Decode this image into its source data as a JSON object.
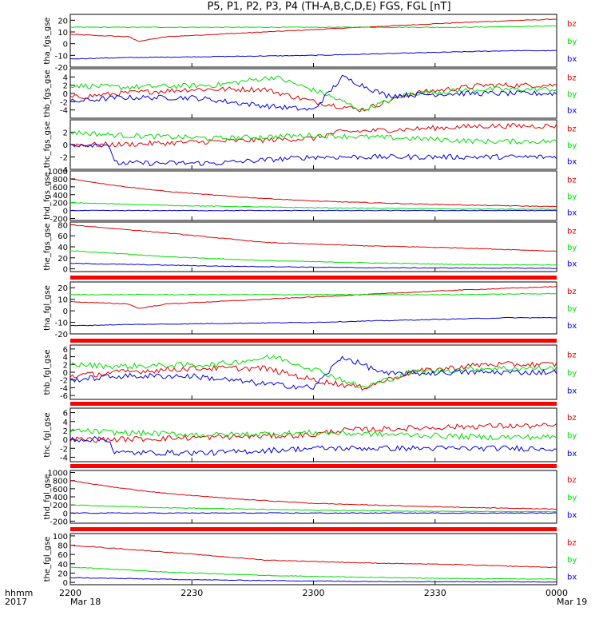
{
  "title": "P5, P1, P2, P3, P4 (TH-A,B,C,D,E) FGS, FGL [nT]",
  "x_axis": {
    "ticks": [
      "2200",
      "2230",
      "2300",
      "2330",
      "0000"
    ],
    "row_label_1": "hhmm",
    "row_label_2": "2017",
    "start_date": "Mar 18",
    "end_date": "Mar 19"
  },
  "colors": {
    "bx": "#0000dd",
    "by": "#00dd00",
    "bz": "#dd0000",
    "band": "#ff0000"
  },
  "chart_data": [
    {
      "type": "line",
      "panel": "tha_fgs_gse",
      "ylabel": "tha_fgs_gse",
      "ylim": [
        -20,
        25
      ],
      "yticks": [
        "20",
        "10",
        "0",
        "-10",
        "-20"
      ],
      "band_above": false,
      "series": [
        {
          "name": "bz",
          "x": [
            0,
            0.05,
            0.12,
            0.14,
            0.2,
            0.35,
            0.5,
            0.65,
            0.8,
            1
          ],
          "values": [
            8,
            7,
            6,
            2,
            6,
            9,
            12,
            15,
            18,
            21
          ]
        },
        {
          "name": "by",
          "x": [
            0,
            0.2,
            0.4,
            0.6,
            0.8,
            1
          ],
          "values": [
            14,
            14,
            14,
            14,
            14,
            15
          ]
        },
        {
          "name": "bx",
          "x": [
            0,
            0.1,
            0.3,
            0.5,
            0.7,
            0.9,
            1
          ],
          "values": [
            -13,
            -12,
            -11,
            -10,
            -8,
            -6,
            -6
          ]
        }
      ],
      "legend": [
        "bz",
        "by",
        "bx"
      ]
    },
    {
      "type": "line",
      "panel": "thb_fgs_gse",
      "ylabel": "thb_fgs_gse",
      "ylim": [
        -6,
        6
      ],
      "yticks": [
        "4",
        "2",
        "0",
        "-2",
        "-4"
      ],
      "band_above": false,
      "series": [
        {
          "name": "bz",
          "x": [
            0,
            0.1,
            0.25,
            0.4,
            0.5,
            0.6,
            0.7,
            0.85,
            1
          ],
          "values": [
            -1,
            0,
            1,
            1,
            -2,
            -4,
            0,
            2,
            2
          ]
        },
        {
          "name": "by",
          "x": [
            0,
            0.1,
            0.3,
            0.42,
            0.52,
            0.6,
            0.7,
            0.85,
            1
          ],
          "values": [
            2,
            1.5,
            2,
            4,
            0,
            -4,
            0,
            1,
            1
          ]
        },
        {
          "name": "bx",
          "x": [
            0,
            0.1,
            0.25,
            0.4,
            0.5,
            0.56,
            0.65,
            0.8,
            1
          ],
          "values": [
            -2,
            -1,
            -1,
            -3,
            -4,
            4,
            -0.5,
            0,
            0
          ]
        }
      ],
      "legend": [
        "bz",
        "by",
        "bx"
      ]
    },
    {
      "type": "line",
      "panel": "thc_fgs_gse",
      "ylabel": "thc_fgs_gse",
      "ylim": [
        -4,
        4
      ],
      "yticks": [
        "2",
        "0",
        "-2",
        "-4"
      ],
      "band_above": false,
      "series": [
        {
          "name": "bz",
          "x": [
            0,
            0.1,
            0.3,
            0.5,
            0.55,
            0.7,
            0.85,
            1
          ],
          "values": [
            0,
            0,
            0.5,
            1,
            2,
            2.5,
            3,
            3
          ]
        },
        {
          "name": "by",
          "x": [
            0,
            0.1,
            0.3,
            0.5,
            0.7,
            0.85,
            1
          ],
          "values": [
            2,
            1.5,
            1,
            1.5,
            1,
            0.5,
            0.5
          ]
        },
        {
          "name": "bx",
          "x": [
            0,
            0.08,
            0.09,
            0.3,
            0.5,
            0.7,
            0.9,
            1
          ],
          "values": [
            0,
            0,
            -3,
            -3,
            -2,
            -2,
            -2,
            -2
          ]
        }
      ],
      "legend": [
        "bz",
        "by",
        "bx"
      ]
    },
    {
      "type": "line",
      "panel": "thd_fgs_gse",
      "ylabel": "thd_fgs_gse",
      "ylim": [
        -250,
        1000
      ],
      "yticks": [
        "1000",
        "800",
        "600",
        "400",
        "200",
        "0",
        "-200"
      ],
      "band_above": false,
      "series": [
        {
          "name": "bz",
          "x": [
            0,
            0.1,
            0.2,
            0.35,
            0.5,
            0.7,
            0.85,
            1
          ],
          "values": [
            800,
            620,
            480,
            340,
            240,
            170,
            130,
            100
          ]
        },
        {
          "name": "by",
          "x": [
            0,
            0.2,
            0.5,
            0.8,
            1
          ],
          "values": [
            200,
            130,
            70,
            40,
            30
          ]
        },
        {
          "name": "bx",
          "x": [
            0,
            0.3,
            0.6,
            1
          ],
          "values": [
            0,
            0,
            0,
            0
          ]
        }
      ],
      "legend": [
        "bz",
        "by",
        "bx"
      ]
    },
    {
      "type": "line",
      "panel": "the_fgs_gse",
      "ylabel": "the_fgs_gse",
      "ylim": [
        -5,
        85
      ],
      "yticks": [
        "80",
        "60",
        "40",
        "20",
        "0"
      ],
      "band_above": false,
      "series": [
        {
          "name": "bz",
          "x": [
            0,
            0.2,
            0.4,
            0.6,
            0.8,
            1
          ],
          "values": [
            80,
            65,
            48,
            42,
            38,
            32
          ]
        },
        {
          "name": "by",
          "x": [
            0,
            0.2,
            0.4,
            0.6,
            0.8,
            1
          ],
          "values": [
            33,
            22,
            15,
            11,
            8,
            7
          ]
        },
        {
          "name": "bx",
          "x": [
            0,
            0.3,
            0.6,
            1
          ],
          "values": [
            10,
            5,
            2,
            1
          ]
        }
      ],
      "legend": [
        "bz",
        "by",
        "bx"
      ]
    },
    {
      "type": "line",
      "panel": "tha_fgl_gse",
      "ylabel": "tha_fgl_gse",
      "ylim": [
        -20,
        25
      ],
      "yticks": [
        "20",
        "10",
        "0",
        "-10",
        "-20"
      ],
      "band_above": true,
      "series": [
        {
          "name": "bz",
          "x": [
            0,
            0.05,
            0.12,
            0.14,
            0.2,
            0.35,
            0.5,
            0.65,
            0.8,
            1
          ],
          "values": [
            8,
            7,
            6,
            2,
            6,
            9,
            12,
            15,
            18,
            21
          ]
        },
        {
          "name": "by",
          "x": [
            0,
            0.2,
            0.4,
            0.6,
            0.8,
            1
          ],
          "values": [
            14,
            14,
            14,
            14,
            14,
            15
          ]
        },
        {
          "name": "bx",
          "x": [
            0,
            0.1,
            0.3,
            0.5,
            0.7,
            0.9,
            1
          ],
          "values": [
            -13,
            -12,
            -11,
            -10,
            -8,
            -6,
            -6
          ]
        }
      ],
      "legend": [
        "bz",
        "by",
        "bx"
      ]
    },
    {
      "type": "line",
      "panel": "thb_fgl_gse",
      "ylabel": "thb_fgl_gse",
      "ylim": [
        -7,
        7
      ],
      "yticks": [
        "6",
        "4",
        "2",
        "0",
        "-2",
        "-4",
        "-6"
      ],
      "band_above": true,
      "series": [
        {
          "name": "bz",
          "x": [
            0,
            0.1,
            0.25,
            0.4,
            0.5,
            0.6,
            0.7,
            0.85,
            1
          ],
          "values": [
            -1,
            0,
            1,
            1,
            -2,
            -4,
            0,
            2,
            2
          ]
        },
        {
          "name": "by",
          "x": [
            0,
            0.1,
            0.3,
            0.42,
            0.52,
            0.6,
            0.7,
            0.85,
            1
          ],
          "values": [
            2,
            1.5,
            2,
            4,
            0,
            -4,
            0,
            1,
            1
          ]
        },
        {
          "name": "bx",
          "x": [
            0,
            0.1,
            0.25,
            0.4,
            0.5,
            0.56,
            0.65,
            0.8,
            1
          ],
          "values": [
            -2,
            -1,
            -1,
            -3,
            -4,
            4,
            -0.5,
            0,
            0
          ]
        }
      ],
      "legend": [
        "bz",
        "by",
        "bx"
      ]
    },
    {
      "type": "line",
      "panel": "thc_fgl_gse",
      "ylabel": "thc_fgl_gse",
      "ylim": [
        -5,
        7
      ],
      "yticks": [
        "6",
        "4",
        "2",
        "0",
        "-2",
        "-4"
      ],
      "band_above": true,
      "series": [
        {
          "name": "bz",
          "x": [
            0,
            0.1,
            0.3,
            0.5,
            0.55,
            0.7,
            0.85,
            1
          ],
          "values": [
            0,
            0,
            0.5,
            1,
            2,
            2.5,
            3,
            3
          ]
        },
        {
          "name": "by",
          "x": [
            0,
            0.1,
            0.3,
            0.5,
            0.7,
            0.85,
            1
          ],
          "values": [
            2,
            1.5,
            1,
            1.5,
            1,
            0.5,
            0.5
          ]
        },
        {
          "name": "bx",
          "x": [
            0,
            0.08,
            0.09,
            0.3,
            0.5,
            0.7,
            0.9,
            1
          ],
          "values": [
            0,
            0,
            -3,
            -3,
            -2,
            -2,
            -2,
            -2
          ]
        }
      ],
      "legend": [
        "bz",
        "by",
        "bx"
      ]
    },
    {
      "type": "line",
      "panel": "thd_fgl_gse",
      "ylabel": "thd_fgl_gse",
      "ylim": [
        -250,
        1050
      ],
      "yticks": [
        "1000",
        "800",
        "600",
        "400",
        "200",
        "0",
        "-200"
      ],
      "band_above": true,
      "series": [
        {
          "name": "bz",
          "x": [
            0,
            0.1,
            0.2,
            0.35,
            0.5,
            0.7,
            0.85,
            1
          ],
          "values": [
            800,
            620,
            480,
            340,
            240,
            170,
            130,
            100
          ]
        },
        {
          "name": "by",
          "x": [
            0,
            0.2,
            0.5,
            0.8,
            1
          ],
          "values": [
            200,
            130,
            70,
            40,
            30
          ]
        },
        {
          "name": "bx",
          "x": [
            0,
            0.3,
            0.6,
            1
          ],
          "values": [
            0,
            0,
            0,
            0
          ]
        }
      ],
      "legend": [
        "bz",
        "by",
        "bx"
      ]
    },
    {
      "type": "line",
      "panel": "the_fgl_gse",
      "ylabel": "the_fgl_gse",
      "ylim": [
        -5,
        105
      ],
      "yticks": [
        "100",
        "80",
        "60",
        "40",
        "20",
        "0"
      ],
      "band_above": true,
      "series": [
        {
          "name": "bz",
          "x": [
            0,
            0.2,
            0.4,
            0.6,
            0.8,
            1
          ],
          "values": [
            80,
            65,
            48,
            42,
            38,
            32
          ]
        },
        {
          "name": "by",
          "x": [
            0,
            0.2,
            0.4,
            0.6,
            0.8,
            1
          ],
          "values": [
            33,
            22,
            15,
            11,
            8,
            7
          ]
        },
        {
          "name": "bx",
          "x": [
            0,
            0.3,
            0.6,
            1
          ],
          "values": [
            10,
            5,
            2,
            1
          ]
        }
      ],
      "legend": [
        "bz",
        "by",
        "bx"
      ]
    }
  ]
}
